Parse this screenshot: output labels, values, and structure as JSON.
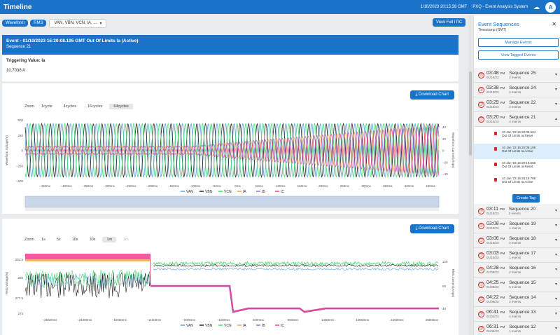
{
  "app": {
    "title": "Timeline",
    "datetime": "1/16/2023 20:15:38 GMT",
    "system": "PXQ - Event Analysis System",
    "avatar": "A"
  },
  "toolbar": {
    "waveform": "Waveform",
    "rms": "RMS",
    "channels": "VAN, VBN, VCN, IA, ...",
    "full_itic": "View Full ITIC"
  },
  "event": {
    "title": "Event - 01/10/2023 15:20:08.195 GMT Out Of Limits Ia (Active)",
    "sequence": "Sequence 21",
    "trigger_label": "Triggering Value: Ia",
    "trigger_value": "10.7036 A"
  },
  "colors": {
    "accent": "#1a73c8",
    "van": "#5aa0d8",
    "vbn": "#222222",
    "vcn": "#3ddc6a",
    "ia": "#f5a050",
    "ib": "#9b6ad0",
    "ic": "#ee3e8e"
  },
  "waveform_chart": {
    "download": "Download Chart",
    "zoom_label": "Zoom",
    "zoom": [
      "1cycle",
      "4cycles",
      "16cycles",
      "64cycles"
    ],
    "zoom_active": 3,
    "ylabel_left": "Waveform Voltage(V)",
    "ylabel_right": "Waveform Current(Amps)",
    "yticks_left": [
      "500",
      "250",
      "0",
      "−250",
      "−500"
    ],
    "yticks_right": [
      "40",
      "20",
      "0",
      "−20",
      "−40"
    ],
    "xticks": [
      "−450ms",
      "−400ms",
      "−350ms",
      "−300ms",
      "−250ms",
      "−200ms",
      "−150ms",
      "−100ms",
      "−50ms",
      "0ms",
      "50ms",
      "100ms",
      "150ms",
      "200ms",
      "250ms",
      "300ms",
      "350ms",
      "400ms",
      "450ms"
    ]
  },
  "rms_chart": {
    "download": "Download Chart",
    "zoom_label": "Zoom",
    "zoom": [
      "1s",
      "5s",
      "10s",
      "30s",
      "1m",
      "2m"
    ],
    "zoom_active": 4,
    "zoom_disabled": 5,
    "ylabel_left": "RMS Voltage(V)",
    "ylabel_right": "RMS Current(Amps)",
    "yticks_left": [
      "282.5",
      "280",
      "277.5",
      "275"
    ],
    "yticks_right": [
      "120",
      "80",
      "40"
    ],
    "xticks": [
      "−26000ms",
      "−21000ms",
      "−16000ms",
      "−11000ms",
      "−6000ms",
      "−1000ms",
      "4000ms",
      "9000ms",
      "14000ms",
      "19000ms",
      "24000ms",
      "29000ms"
    ]
  },
  "legend": [
    "VAN",
    "VBN",
    "VCN",
    "IA",
    "IB",
    "IC"
  ],
  "sidebar": {
    "title": "Event Sequences",
    "subtitle": "Timestamp (GMT)",
    "manage": "Manage Events",
    "tagged": "View Tagged Events",
    "create_tag": "Create Tag",
    "sequences_top": [
      {
        "time": "03:48",
        "ampm": "PM",
        "date": "01/10/23",
        "name": "Sequence 25",
        "count": "2 events"
      },
      {
        "time": "03:38",
        "ampm": "PM",
        "date": "01/10/23",
        "name": "Sequence 24",
        "count": "2 events"
      },
      {
        "time": "03:29",
        "ampm": "PM",
        "date": "01/10/23",
        "name": "Sequence 22",
        "count": "2 events"
      },
      {
        "time": "03:20",
        "ampm": "PM",
        "date": "01/10/23",
        "name": "Sequence 21",
        "count": "4 events"
      }
    ],
    "events": [
      {
        "time": "10 Jan '23 15:20:05.994",
        "desc": "Out Of Limits  Ia  Reset"
      },
      {
        "time": "10 Jan '23 15:20:08.195",
        "desc": "Out Of Limits  Ia  Active"
      },
      {
        "time": "10 Jan '23 15:20:16.595",
        "desc": "Out Of Limits  Ia  Reset"
      },
      {
        "time": "10 Jan '23 15:20:19.795",
        "desc": "Out Of Limits  Ia  Active"
      }
    ],
    "sequences_bottom": [
      {
        "time": "03:11",
        "ampm": "PM",
        "date": "01/10/23",
        "name": "Sequence 20",
        "count": "3 events"
      },
      {
        "time": "03:08",
        "ampm": "PM",
        "date": "01/10/23",
        "name": "Sequence 19",
        "count": "1 events"
      },
      {
        "time": "03:06",
        "ampm": "PM",
        "date": "01/10/23",
        "name": "Sequence 18",
        "count": "2 events"
      },
      {
        "time": "03:03",
        "ampm": "PM",
        "date": "01/10/23",
        "name": "Sequence 17",
        "count": "1 events"
      },
      {
        "time": "04:28",
        "ampm": "PM",
        "date": "01/09/23",
        "name": "Sequence 16",
        "count": "2 events"
      },
      {
        "time": "04:25",
        "ampm": "PM",
        "date": "01/09/23",
        "name": "Sequence 15",
        "count": "6 events"
      },
      {
        "time": "04:22",
        "ampm": "PM",
        "date": "01/09/23",
        "name": "Sequence 14",
        "count": "2 events"
      },
      {
        "time": "06:41",
        "ampm": "PM",
        "date": "01/04/23",
        "name": "Sequence 13",
        "count": "4 events"
      },
      {
        "time": "06:31",
        "ampm": "PM",
        "date": "01/04/23",
        "name": "Sequence 12",
        "count": "1 events"
      }
    ]
  }
}
